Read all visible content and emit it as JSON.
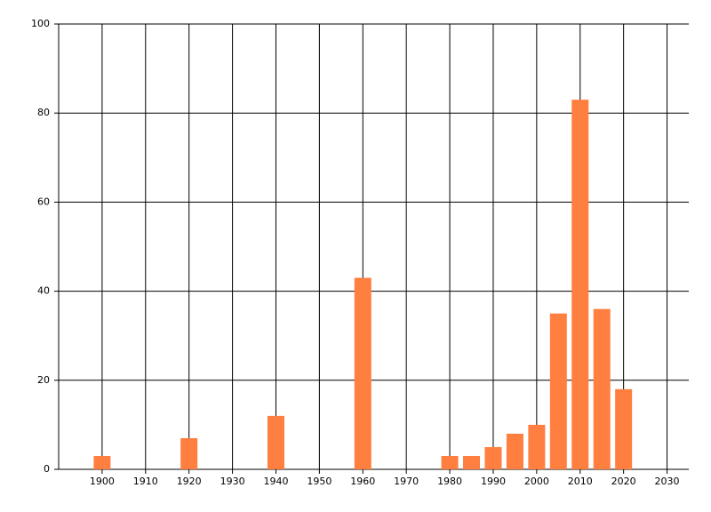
{
  "chart_data": {
    "type": "bar",
    "x": [
      1900,
      1920,
      1940,
      1960,
      1980,
      1985,
      1990,
      1995,
      2000,
      2005,
      2010,
      2015,
      2020
    ],
    "values": [
      3,
      7,
      12,
      43,
      3,
      3,
      5,
      8,
      10,
      35,
      83,
      36,
      18
    ],
    "color": "#ff7f40",
    "xlim": [
      1890,
      2035
    ],
    "xticks": [
      1900,
      1910,
      1920,
      1930,
      1940,
      1950,
      1960,
      1970,
      1980,
      1990,
      2000,
      2010,
      2020,
      2030
    ],
    "ylim": [
      0,
      100
    ],
    "yticks": [
      0,
      20,
      40,
      60,
      80,
      100
    ],
    "grid": true
  }
}
